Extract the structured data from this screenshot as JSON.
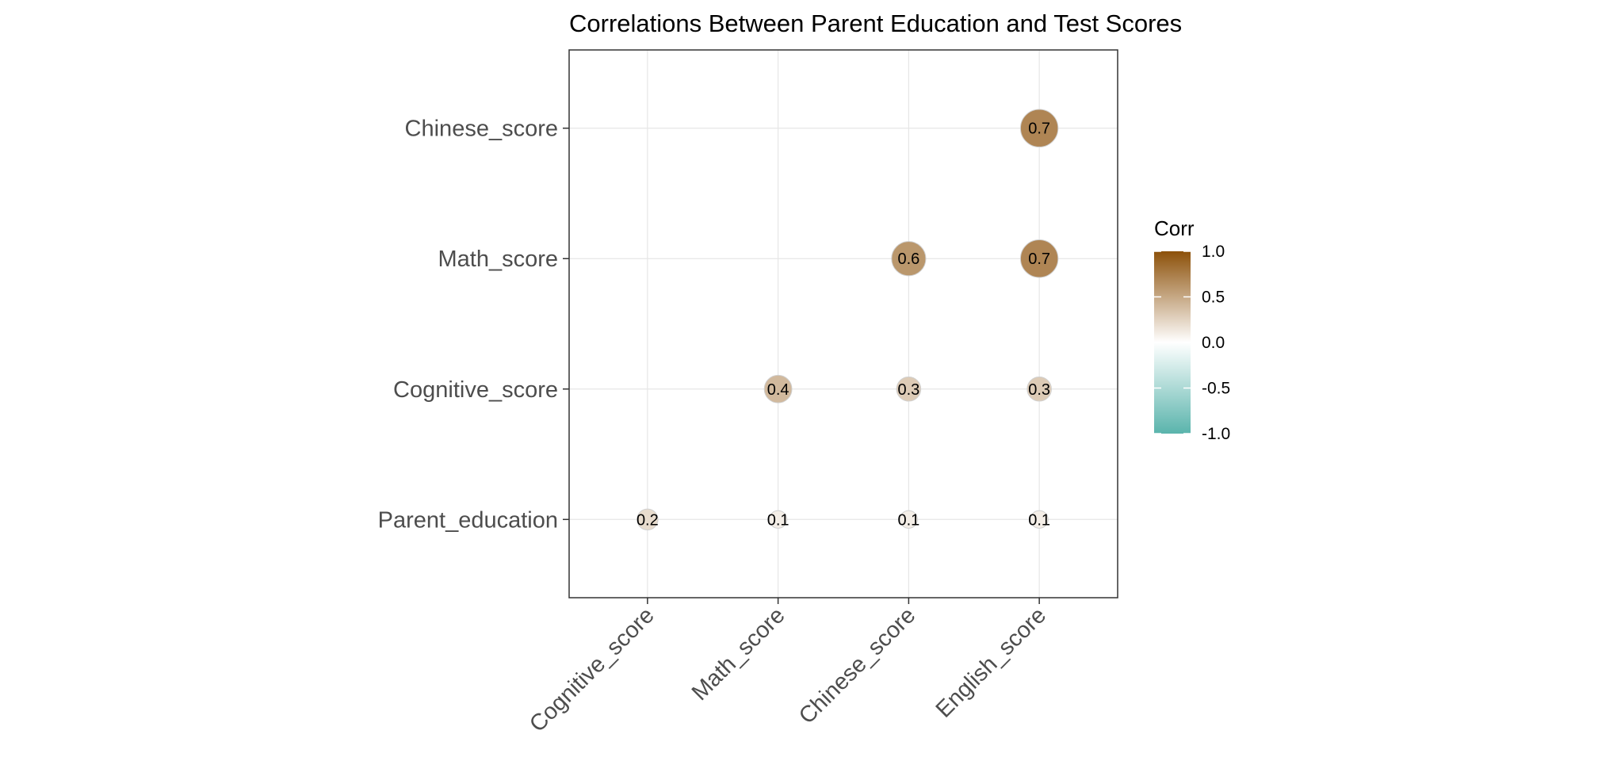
{
  "chart_data": {
    "type": "correlation-bubble-matrix",
    "title": "Correlations Between Parent Education and Test Scores",
    "x_categories": [
      "Cognitive_score",
      "Math_score",
      "Chinese_score",
      "English_score"
    ],
    "y_categories": [
      "Parent_education",
      "Cognitive_score",
      "Math_score",
      "Chinese_score"
    ],
    "cells": [
      {
        "x": "Cognitive_score",
        "y": "Parent_education",
        "value": 0.2,
        "label": "0.2"
      },
      {
        "x": "Math_score",
        "y": "Parent_education",
        "value": 0.1,
        "label": "0.1"
      },
      {
        "x": "Chinese_score",
        "y": "Parent_education",
        "value": 0.1,
        "label": "0.1"
      },
      {
        "x": "English_score",
        "y": "Parent_education",
        "value": 0.1,
        "label": "0.1"
      },
      {
        "x": "Math_score",
        "y": "Cognitive_score",
        "value": 0.4,
        "label": "0.4"
      },
      {
        "x": "Chinese_score",
        "y": "Cognitive_score",
        "value": 0.3,
        "label": "0.3"
      },
      {
        "x": "English_score",
        "y": "Cognitive_score",
        "value": 0.3,
        "label": "0.3"
      },
      {
        "x": "Chinese_score",
        "y": "Math_score",
        "value": 0.6,
        "label": "0.6"
      },
      {
        "x": "English_score",
        "y": "Math_score",
        "value": 0.7,
        "label": "0.7"
      },
      {
        "x": "English_score",
        "y": "Chinese_score",
        "value": 0.7,
        "label": "0.7"
      }
    ],
    "legend": {
      "title": "Corr",
      "placement": "right",
      "range": [
        -1,
        1
      ],
      "ticks": [
        1.0,
        0.5,
        0.0,
        -0.5,
        -1.0
      ],
      "tick_labels": [
        "1.0",
        "0.5",
        "0.0",
        "-0.5",
        "-1.0"
      ]
    },
    "colors": {
      "low": "#5ab4ac",
      "mid": "#ffffff",
      "high": "#8c510a"
    },
    "grid": true
  }
}
